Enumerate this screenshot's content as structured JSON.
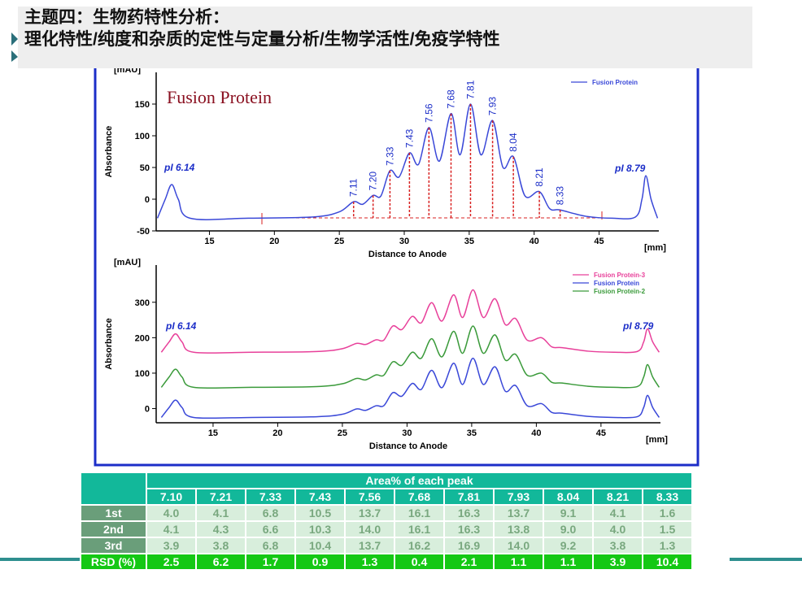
{
  "header": {
    "title": [
      "主题四：生物药特性分析：",
      "理化特性/纯度和杂质的定性与定量分析/生物学活性/免疫学特性"
    ]
  },
  "chart_data": [
    {
      "type": "line",
      "x_unit": "[mm]",
      "y_unit": "[mAU]",
      "xlabel": "Distance to Anode",
      "ylabel": "Absorbance",
      "annotations": [
        "Fusion Protein",
        "pI 6.14",
        "pI 8.79"
      ],
      "xlim": [
        10.9,
        49.6
      ],
      "ylim": [
        -50,
        200
      ],
      "xticks": [
        15,
        20,
        25,
        30,
        35,
        40,
        45
      ],
      "yticks": [
        -50,
        0,
        50,
        100,
        150
      ],
      "legend": "upper right",
      "x": [
        11,
        11.6,
        12.1,
        12.6,
        13.5,
        18,
        23,
        25,
        26.1,
        26.8,
        27.6,
        28.2,
        28.9,
        29.6,
        30.4,
        31.1,
        31.9,
        32.7,
        33.6,
        34.3,
        35.1,
        35.9,
        36.8,
        37.6,
        38.4,
        39.3,
        40.4,
        41.2,
        42.0,
        44,
        46,
        47.8,
        48.3,
        48.6,
        49.0,
        49.5
      ],
      "series": [
        {
          "name": "Fusion Protein",
          "color": "#3a48d8",
          "values": [
            -30,
            0,
            23,
            0,
            -30,
            -30,
            -28,
            -20,
            -4,
            -8,
            6,
            5,
            45,
            35,
            73,
            55,
            113,
            60,
            135,
            70,
            150,
            70,
            124,
            50,
            67,
            5,
            12,
            -15,
            -17,
            -27,
            -30,
            -28,
            0,
            37,
            0,
            -30
          ]
        }
      ],
      "peaks": {
        "x": [
          26.1,
          27.6,
          28.9,
          30.4,
          31.9,
          33.6,
          35.1,
          36.8,
          38.4,
          40.4,
          42.0
        ],
        "labels": [
          "7.11",
          "7.20",
          "7.33",
          "7.43",
          "7.56",
          "7.68",
          "7.81",
          "7.93",
          "8.04",
          "8.21",
          "8.33"
        ],
        "color": "#d82020"
      }
    },
    {
      "type": "line",
      "x_unit": "[mm]",
      "y_unit": "[mAU]",
      "xlabel": "Distance to Anode",
      "ylabel": "Absorbance",
      "annotations": [
        "pI 6.14",
        "pI 8.79"
      ],
      "xlim": [
        10.6,
        49.6
      ],
      "ylim": [
        -40,
        405
      ],
      "xticks": [
        15,
        20,
        25,
        30,
        35,
        40,
        45
      ],
      "yticks": [
        0,
        100,
        200,
        300
      ],
      "legend": "upper right",
      "x": [
        11,
        11.6,
        12.1,
        12.6,
        13.5,
        18,
        23,
        25,
        26.1,
        26.8,
        27.6,
        28.2,
        28.9,
        29.6,
        30.4,
        31.1,
        31.9,
        32.7,
        33.6,
        34.3,
        35.1,
        35.9,
        36.8,
        37.6,
        38.4,
        39.3,
        40.4,
        41.2,
        42.0,
        44,
        46,
        47.8,
        48.3,
        48.6,
        49.0,
        49.5
      ],
      "series": [
        {
          "name": "Fusion Protein-3",
          "color": "#e8409a",
          "values": [
            159,
            188,
            211,
            188,
            159,
            159,
            161,
            169,
            184,
            181,
            194,
            193,
            233,
            223,
            260,
            242,
            299,
            247,
            321,
            257,
            335,
            257,
            310,
            237,
            254,
            193,
            200,
            174,
            172,
            162,
            159,
            161,
            188,
            225,
            188,
            159
          ]
        },
        {
          "name": "Fusion Protein",
          "color": "#3a48d8",
          "values": [
            -25,
            3,
            24,
            3,
            -25,
            -25,
            -23,
            -16,
            -1,
            -5,
            8,
            8,
            45,
            35,
            71,
            54,
            108,
            59,
            128,
            68,
            142,
            68,
            118,
            49,
            65,
            8,
            14,
            -11,
            -13,
            -22,
            -25,
            -23,
            3,
            37,
            3,
            -25
          ]
        },
        {
          "name": "Fusion Protein-2",
          "color": "#3a9a3a",
          "values": [
            60,
            89,
            111,
            89,
            60,
            60,
            62,
            70,
            85,
            81,
            95,
            94,
            132,
            122,
            159,
            142,
            197,
            146,
            218,
            156,
            233,
            156,
            208,
            137,
            153,
            94,
            100,
            74,
            72,
            63,
            60,
            62,
            89,
            124,
            89,
            60
          ]
        }
      ]
    }
  ],
  "table": {
    "title": "Area% of each peak",
    "columns": [
      "7.10",
      "7.21",
      "7.33",
      "7.43",
      "7.56",
      "7.68",
      "7.81",
      "7.93",
      "8.04",
      "8.21",
      "8.33"
    ],
    "rows": [
      {
        "label": "1st",
        "values": [
          "4.0",
          "4.1",
          "6.8",
          "10.5",
          "13.7",
          "16.1",
          "16.3",
          "13.7",
          "9.1",
          "4.1",
          "1.6"
        ]
      },
      {
        "label": "2nd",
        "values": [
          "4.1",
          "4.3",
          "6.6",
          "10.3",
          "14.0",
          "16.1",
          "16.3",
          "13.8",
          "9.0",
          "4.0",
          "1.5"
        ]
      },
      {
        "label": "3rd",
        "values": [
          "3.9",
          "3.8",
          "6.8",
          "10.4",
          "13.7",
          "16.2",
          "16.9",
          "14.0",
          "9.2",
          "3.8",
          "1.3"
        ]
      },
      {
        "label": "RSD (%)",
        "values": [
          "2.5",
          "6.2",
          "1.7",
          "0.9",
          "1.3",
          "0.4",
          "2.1",
          "1.1",
          "1.1",
          "3.9",
          "10.4"
        ]
      }
    ]
  }
}
